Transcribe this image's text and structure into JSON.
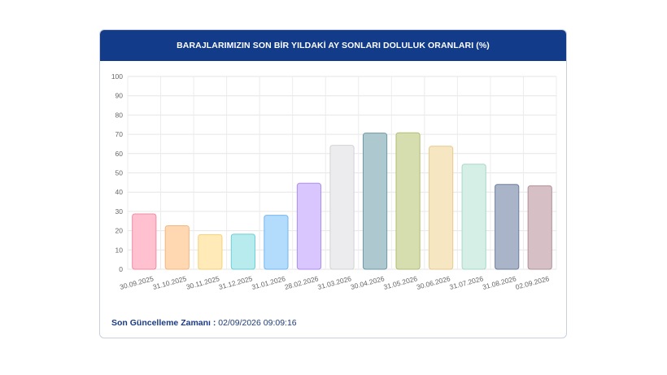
{
  "chart_data": {
    "type": "bar",
    "title": "BARAJLARIMIZIN SON BİR YILDAKİ AY SONLARI DOLULUK ORANLARI (%)",
    "categories": [
      "30.09.2025",
      "31.10.2025",
      "30.11.2025",
      "31.12.2025",
      "31.01.2026",
      "28.02.2026",
      "31.03.2026",
      "30.04.2026",
      "31.05.2026",
      "30.06.2026",
      "31.07.2026",
      "31.08.2026",
      "02.09.2026"
    ],
    "values": [
      28.7,
      22.6,
      18.0,
      18.2,
      28.0,
      44.6,
      64.3,
      70.6,
      70.8,
      63.8,
      54.5,
      44.0,
      43.3
    ],
    "bar_colors": [
      "#ffc1d0",
      "#ffd8b1",
      "#ffeab8",
      "#b8ebee",
      "#b2dbfc",
      "#d9c6ff",
      "#ececee",
      "#aec8d0",
      "#d6deb0",
      "#f7e6c2",
      "#d6efe6",
      "#a9b4c8",
      "#d7bfc6"
    ],
    "bar_borders": [
      "#f28aa2",
      "#f5b57f",
      "#f3d27d",
      "#6ccfd6",
      "#74b7f0",
      "#ab8ef2",
      "#d2d2d6",
      "#6f97a4",
      "#b1bd74",
      "#e7c98c",
      "#a6d8c6",
      "#6d7e9c",
      "#b0909b"
    ],
    "ylim": [
      0,
      100
    ],
    "yticks": [
      "0",
      "10",
      "20",
      "30",
      "40",
      "50",
      "60",
      "70",
      "80",
      "90",
      "100"
    ],
    "xlabel": "",
    "ylabel": "",
    "grid": true,
    "legend": "none"
  },
  "footer": {
    "label": "Son Güncelleme Zamanı :",
    "value": "02/09/2026 09:09:16"
  }
}
